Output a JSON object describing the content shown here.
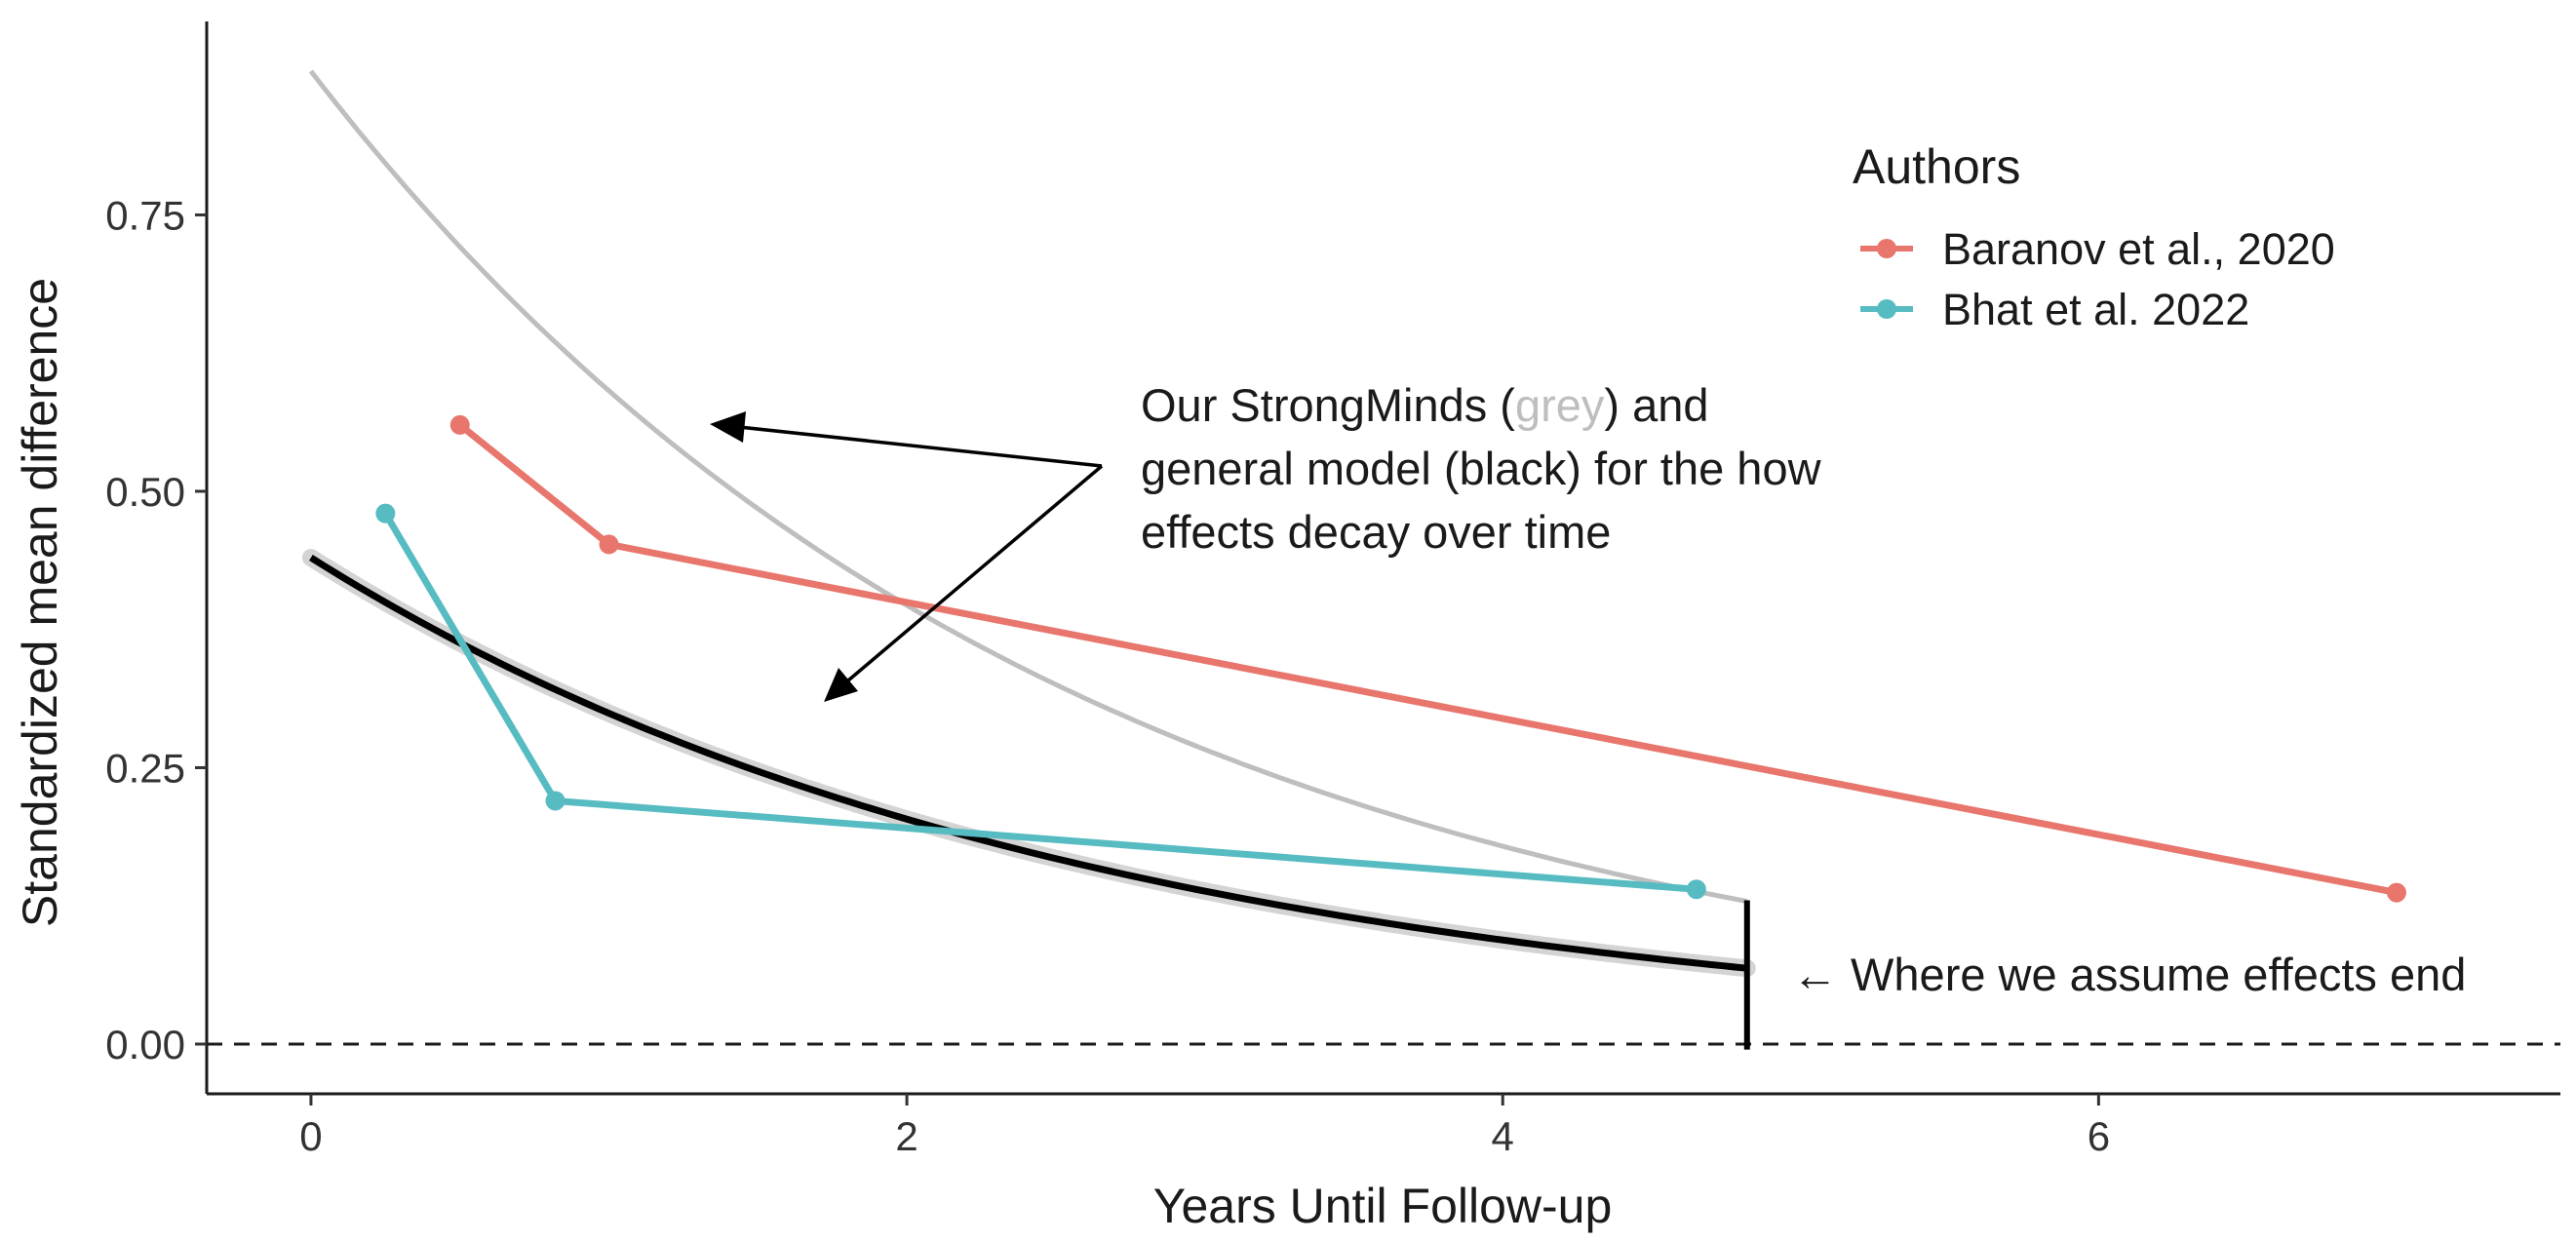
{
  "chart_data": {
    "type": "line",
    "title": "",
    "xlabel": "Years Until Follow-up",
    "ylabel": "Standardized mean difference",
    "xlim": [
      -0.35,
      7.55
    ],
    "ylim": [
      -0.045,
      0.925
    ],
    "x_ticks": [
      0,
      2,
      4,
      6
    ],
    "y_ticks": [
      0.0,
      0.25,
      0.5,
      0.75
    ],
    "x_tick_labels": [
      "0",
      "2",
      "4",
      "6"
    ],
    "y_tick_labels": [
      "0.00",
      "0.25",
      "0.50",
      "0.75"
    ],
    "grid": false,
    "legend": {
      "title": "Authors",
      "placement": "top-right"
    },
    "series": [
      {
        "name": "Baranov et al., 2020",
        "color": "#E8766D",
        "x": [
          0.5,
          1.0,
          7.0
        ],
        "y": [
          0.56,
          0.452,
          0.137
        ]
      },
      {
        "name": "Bhat et al. 2022",
        "color": "#56BCC2",
        "x": [
          0.25,
          0.82,
          4.65
        ],
        "y": [
          0.48,
          0.22,
          0.14
        ]
      }
    ],
    "models": [
      {
        "id": "strongminds",
        "color": "#BEBEBE",
        "a": 0.88,
        "r": 0.3982,
        "x_end": 4.82
      },
      {
        "id": "general",
        "color": "#000000",
        "a": 0.44,
        "r": 0.3856,
        "x_end": 4.82
      }
    ],
    "reference_line": {
      "y": 0.0,
      "style": "dashed"
    },
    "end_marker": {
      "x": 4.82,
      "y_top": 0.13,
      "y_bottom": -0.005
    },
    "annotations": {
      "model_note": {
        "line1_pre": "Our StrongMinds (",
        "line1_grey": "grey",
        "line1_post": ") and",
        "line2": "general model (black) for the how",
        "line3": "effects decay over time"
      },
      "end_note": "← Where we assume effects end"
    }
  }
}
